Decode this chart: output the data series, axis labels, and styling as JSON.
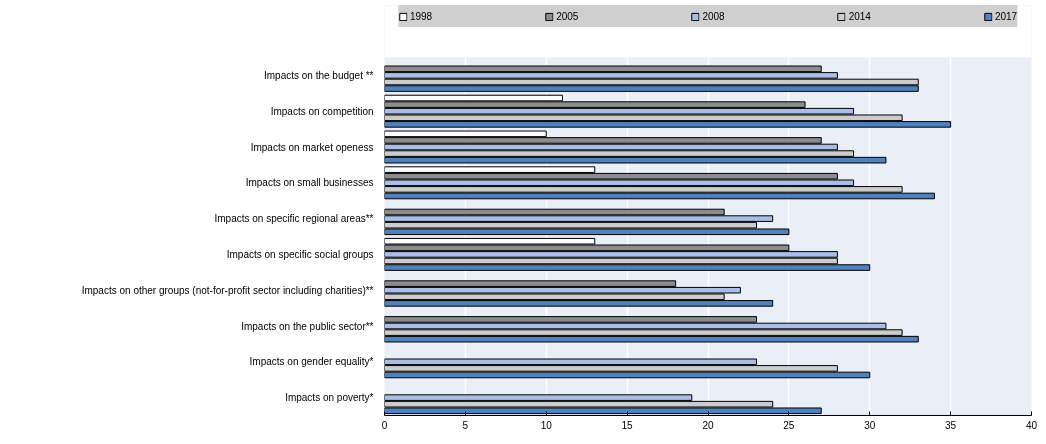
{
  "chart_data": {
    "type": "bar",
    "orientation": "horizontal",
    "categories": [
      "Impacts on the budget **",
      "Impacts on competition",
      "Impacts on market openess",
      "Impacts on small businesses",
      "Impacts on specific regional areas**",
      "Impacts on specific social groups",
      "Impacts on other groups (not-for-profit sector including charities)**",
      "Impacts on the public sector**",
      "Impacts on gender equality*",
      "Impacts on poverty*"
    ],
    "series": [
      {
        "name": "1998",
        "color": "#ffffff",
        "values": [
          null,
          11,
          10,
          13,
          null,
          13,
          null,
          null,
          null,
          null
        ]
      },
      {
        "name": "2005",
        "color": "#8c8c8c",
        "values": [
          27,
          26,
          27,
          28,
          21,
          25,
          18,
          23,
          null,
          null
        ]
      },
      {
        "name": "2008",
        "color": "#a9bde6",
        "values": [
          28,
          29,
          28,
          29,
          24,
          28,
          22,
          31,
          23,
          19
        ]
      },
      {
        "name": "2014",
        "color": "#cccccc",
        "values": [
          33,
          32,
          29,
          32,
          23,
          28,
          21,
          32,
          28,
          24
        ]
      },
      {
        "name": "2017",
        "color": "#4f81bd",
        "values": [
          33,
          35,
          31,
          34,
          25,
          30,
          24,
          33,
          30,
          27
        ]
      }
    ],
    "xlim": [
      0,
      40
    ],
    "xticks": [
      0,
      5,
      10,
      15,
      20,
      25,
      30,
      35,
      40
    ],
    "grid": "x",
    "legend": "top"
  }
}
